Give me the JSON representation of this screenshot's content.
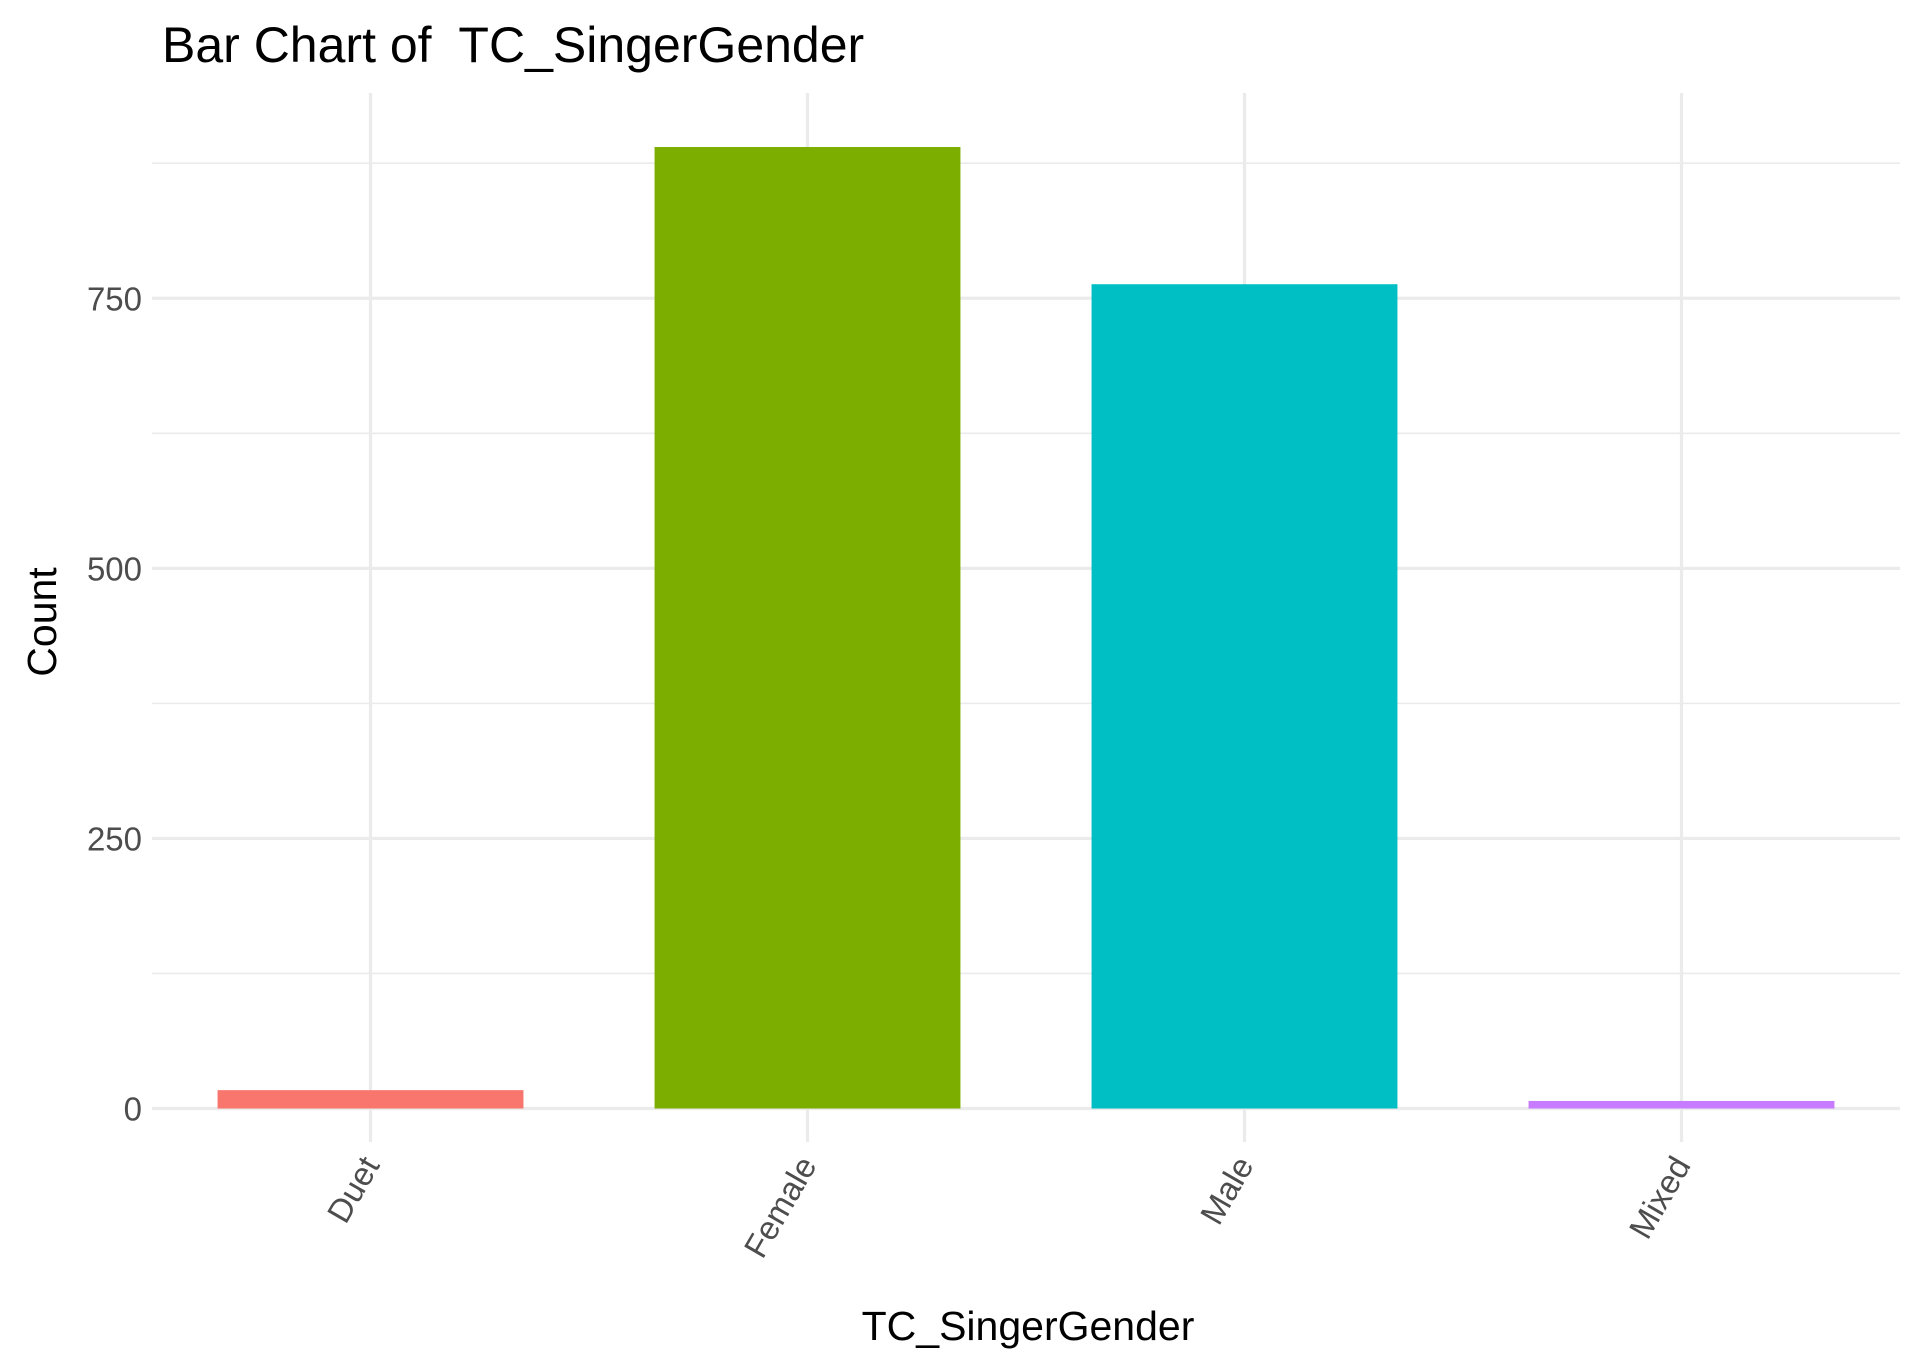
{
  "chart_data": {
    "type": "bar",
    "title": "Bar Chart of  TC_SingerGender",
    "xlabel": "TC_SingerGender",
    "ylabel": "Count",
    "categories": [
      "Duet",
      "Female",
      "Male",
      "Mixed"
    ],
    "values": [
      17,
      890,
      763,
      7
    ],
    "colors": [
      "#F8766D",
      "#7CAE00",
      "#00BFC4",
      "#C77CFF"
    ],
    "ylim": [
      -31,
      940
    ],
    "yticks": [
      0,
      250,
      500,
      750
    ],
    "ytick_labels": [
      "0",
      "250",
      "500",
      "750"
    ],
    "x_tick_rotation": -60,
    "grid": true,
    "legend": "none"
  }
}
